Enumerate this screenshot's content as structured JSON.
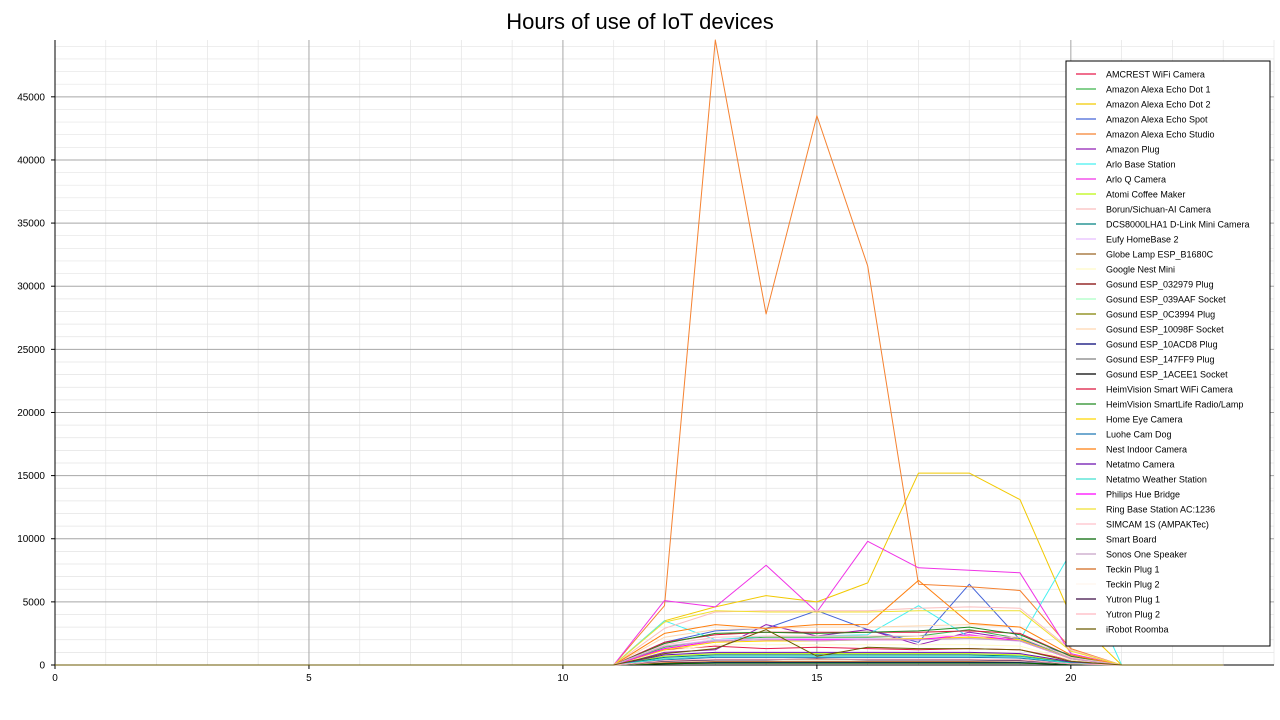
{
  "chart_data": {
    "type": "line",
    "title": "Hours of use of IoT devices",
    "xlabel": "",
    "ylabel": "",
    "xlim": [
      0,
      24
    ],
    "ylim": [
      0,
      49500
    ],
    "xticks": [
      0,
      5,
      10,
      15,
      20
    ],
    "yticks": [
      0,
      5000,
      10000,
      15000,
      20000,
      25000,
      30000,
      35000,
      40000,
      45000
    ],
    "grid": true,
    "legend_position": "top-right",
    "x": [
      0,
      1,
      2,
      3,
      4,
      5,
      6,
      7,
      8,
      9,
      10,
      11,
      12,
      13,
      14,
      15,
      16,
      17,
      18,
      19,
      20,
      21,
      22,
      23
    ],
    "series": [
      {
        "name": "AMCREST WiFi Camera",
        "color": "#e6194b",
        "values": [
          0,
          0,
          0,
          0,
          0,
          0,
          0,
          0,
          0,
          0,
          0,
          0,
          1200,
          1500,
          1300,
          1400,
          1300,
          1200,
          1300,
          1200,
          400,
          0,
          0,
          0
        ]
      },
      {
        "name": "Amazon Alexa Echo Dot 1",
        "color": "#3cb44b",
        "values": [
          0,
          0,
          0,
          0,
          0,
          0,
          0,
          0,
          0,
          0,
          0,
          0,
          1400,
          2000,
          2200,
          2200,
          2200,
          2300,
          2800,
          2100,
          600,
          0,
          0,
          0
        ]
      },
      {
        "name": "Amazon Alexa Echo Dot 2",
        "color": "#f2c900",
        "values": [
          0,
          0,
          0,
          0,
          0,
          0,
          0,
          0,
          0,
          0,
          0,
          0,
          3500,
          4600,
          5500,
          5000,
          6500,
          15200,
          15200,
          13100,
          3900,
          0,
          0,
          0
        ]
      },
      {
        "name": "Amazon Alexa Echo Spot",
        "color": "#4363d8",
        "values": [
          0,
          0,
          0,
          0,
          0,
          0,
          0,
          0,
          0,
          0,
          0,
          0,
          1800,
          2700,
          2900,
          4300,
          2800,
          1800,
          6400,
          2000,
          800,
          0,
          0,
          0
        ]
      },
      {
        "name": "Amazon Alexa Echo Studio",
        "color": "#f58231",
        "values": [
          0,
          0,
          0,
          0,
          0,
          0,
          0,
          0,
          0,
          0,
          0,
          0,
          4700,
          49500,
          27800,
          43500,
          31600,
          6400,
          6200,
          5900,
          1300,
          0,
          0,
          0
        ]
      },
      {
        "name": "Amazon Plug",
        "color": "#911eb4",
        "values": [
          0,
          0,
          0,
          0,
          0,
          0,
          0,
          0,
          0,
          0,
          0,
          0,
          1000,
          1200,
          3200,
          2300,
          2800,
          1600,
          2600,
          2000,
          500,
          0,
          0,
          0
        ]
      },
      {
        "name": "Arlo Base Station",
        "color": "#46f0f0",
        "values": [
          0,
          0,
          0,
          0,
          0,
          0,
          0,
          0,
          0,
          0,
          0,
          0,
          3500,
          2000,
          2300,
          2300,
          2400,
          4700,
          2200,
          2000,
          8900,
          0,
          0,
          0
        ]
      },
      {
        "name": "Arlo Q Camera",
        "color": "#f032e6",
        "values": [
          0,
          0,
          0,
          0,
          0,
          0,
          0,
          0,
          0,
          0,
          0,
          0,
          5100,
          4600,
          7900,
          4200,
          9800,
          7700,
          7500,
          7300,
          900,
          0,
          0,
          0
        ]
      },
      {
        "name": "Atomi Coffee Maker",
        "color": "#bcf60c",
        "values": [
          0,
          0,
          0,
          0,
          0,
          0,
          0,
          0,
          0,
          0,
          0,
          0,
          700,
          900,
          900,
          900,
          900,
          900,
          900,
          800,
          200,
          0,
          0,
          0
        ]
      },
      {
        "name": "Borun/Sichuan-AI Camera",
        "color": "#fabebe",
        "values": [
          0,
          0,
          0,
          0,
          0,
          0,
          0,
          0,
          0,
          0,
          0,
          0,
          2900,
          4200,
          4300,
          4300,
          4300,
          4500,
          4600,
          4500,
          1200,
          0,
          0,
          0
        ]
      },
      {
        "name": "DCS8000LHA1 D-Link Mini Camera",
        "color": "#008080",
        "values": [
          0,
          0,
          0,
          0,
          0,
          0,
          0,
          0,
          0,
          0,
          0,
          0,
          600,
          800,
          800,
          800,
          800,
          800,
          800,
          700,
          200,
          0,
          0,
          0
        ]
      },
      {
        "name": "Eufy HomeBase 2",
        "color": "#e6beff",
        "values": [
          0,
          0,
          0,
          0,
          0,
          0,
          0,
          0,
          0,
          0,
          0,
          0,
          1500,
          2000,
          2100,
          2100,
          2100,
          2100,
          2100,
          2000,
          500,
          0,
          0,
          0
        ]
      },
      {
        "name": "Globe Lamp ESP_B1680C",
        "color": "#9a6324",
        "values": [
          0,
          0,
          0,
          0,
          0,
          0,
          0,
          0,
          0,
          0,
          0,
          0,
          300,
          400,
          400,
          400,
          400,
          400,
          400,
          400,
          100,
          0,
          0,
          0
        ]
      },
      {
        "name": "Google Nest Mini",
        "color": "#fffac8",
        "values": [
          0,
          0,
          0,
          0,
          0,
          0,
          0,
          0,
          0,
          0,
          0,
          0,
          1100,
          1600,
          1600,
          1600,
          1600,
          1600,
          1600,
          1500,
          400,
          0,
          0,
          0
        ]
      },
      {
        "name": "Gosund ESP_032979 Plug",
        "color": "#800000",
        "values": [
          0,
          0,
          0,
          0,
          0,
          0,
          0,
          0,
          0,
          0,
          0,
          0,
          200,
          300,
          300,
          300,
          300,
          300,
          300,
          300,
          100,
          0,
          0,
          0
        ]
      },
      {
        "name": "Gosund ESP_039AAF Socket",
        "color": "#aaffc3",
        "values": [
          0,
          0,
          0,
          0,
          0,
          0,
          0,
          0,
          0,
          0,
          0,
          0,
          250,
          350,
          350,
          350,
          350,
          350,
          350,
          300,
          100,
          0,
          0,
          0
        ]
      },
      {
        "name": "Gosund ESP_0C3994 Plug",
        "color": "#808000",
        "values": [
          0,
          0,
          0,
          0,
          0,
          0,
          0,
          0,
          0,
          0,
          0,
          0,
          300,
          400,
          400,
          400,
          400,
          400,
          400,
          350,
          100,
          0,
          0,
          0
        ]
      },
      {
        "name": "Gosund ESP_10098F Socket",
        "color": "#ffd8b1",
        "values": [
          0,
          0,
          0,
          0,
          0,
          0,
          0,
          0,
          0,
          0,
          0,
          0,
          2200,
          2800,
          2900,
          3000,
          3000,
          3100,
          3200,
          3000,
          800,
          0,
          0,
          0
        ]
      },
      {
        "name": "Gosund ESP_10ACD8 Plug",
        "color": "#000075",
        "values": [
          0,
          0,
          0,
          0,
          0,
          0,
          0,
          0,
          0,
          0,
          0,
          0,
          150,
          200,
          200,
          200,
          200,
          200,
          200,
          200,
          50,
          0,
          0,
          0
        ]
      },
      {
        "name": "Gosund ESP_147FF9 Plug",
        "color": "#808080",
        "values": [
          0,
          0,
          0,
          0,
          0,
          0,
          0,
          0,
          0,
          0,
          0,
          0,
          100,
          150,
          150,
          150,
          150,
          150,
          150,
          150,
          50,
          0,
          0,
          0
        ]
      },
      {
        "name": "Gosund ESP_1ACEE1 Socket",
        "color": "#000000",
        "values": [
          0,
          0,
          0,
          0,
          0,
          0,
          0,
          0,
          0,
          0,
          0,
          0,
          200,
          300,
          300,
          300,
          300,
          300,
          300,
          300,
          100,
          0,
          0,
          0
        ]
      },
      {
        "name": "HeimVision Smart WiFi Camera",
        "color": "#dc143c",
        "values": [
          0,
          0,
          0,
          0,
          0,
          0,
          0,
          0,
          0,
          0,
          0,
          0,
          1800,
          2400,
          2600,
          2600,
          2600,
          2600,
          2700,
          2500,
          700,
          0,
          0,
          0
        ]
      },
      {
        "name": "HeimVision SmartLife Radio/Lamp",
        "color": "#228b22",
        "values": [
          0,
          0,
          0,
          0,
          0,
          0,
          0,
          0,
          0,
          0,
          0,
          0,
          1700,
          2500,
          2600,
          2500,
          2600,
          2700,
          3000,
          2400,
          700,
          0,
          0,
          0
        ]
      },
      {
        "name": "Home Eye Camera",
        "color": "#ffd700",
        "values": [
          0,
          0,
          0,
          0,
          0,
          0,
          0,
          0,
          0,
          0,
          0,
          0,
          1200,
          1800,
          1900,
          1900,
          2000,
          2100,
          2200,
          2000,
          500,
          0,
          0,
          0
        ]
      },
      {
        "name": "Luohe Cam Dog",
        "color": "#1f77b4",
        "values": [
          0,
          0,
          0,
          0,
          0,
          0,
          0,
          0,
          0,
          0,
          0,
          0,
          400,
          600,
          600,
          600,
          600,
          600,
          600,
          550,
          150,
          0,
          0,
          0
        ]
      },
      {
        "name": "Nest Indoor Camera",
        "color": "#ff7f0e",
        "values": [
          0,
          0,
          0,
          0,
          0,
          0,
          0,
          0,
          0,
          0,
          0,
          0,
          2500,
          3200,
          2900,
          3200,
          3200,
          6700,
          3300,
          3000,
          800,
          0,
          0,
          0
        ]
      },
      {
        "name": "Netatmo Camera",
        "color": "#6a0dad",
        "values": [
          0,
          0,
          0,
          0,
          0,
          0,
          0,
          0,
          0,
          0,
          0,
          0,
          800,
          1000,
          1000,
          1000,
          1000,
          1000,
          1000,
          900,
          250,
          0,
          0,
          0
        ]
      },
      {
        "name": "Netatmo Weather Station",
        "color": "#40e0d0",
        "values": [
          0,
          0,
          0,
          0,
          0,
          0,
          0,
          0,
          0,
          0,
          0,
          0,
          500,
          700,
          700,
          700,
          700,
          700,
          700,
          650,
          150,
          0,
          0,
          0
        ]
      },
      {
        "name": "Philips Hue Bridge",
        "color": "#ff00ff",
        "values": [
          0,
          0,
          0,
          0,
          0,
          0,
          0,
          0,
          0,
          0,
          0,
          0,
          1300,
          1900,
          2000,
          2000,
          2000,
          2000,
          2400,
          1900,
          500,
          0,
          0,
          0
        ]
      },
      {
        "name": "Ring Base Station AC:1236",
        "color": "#f0e130",
        "values": [
          0,
          0,
          0,
          0,
          0,
          0,
          0,
          0,
          0,
          0,
          0,
          0,
          3400,
          4300,
          4200,
          4200,
          4200,
          4300,
          4300,
          4300,
          1100,
          0,
          0,
          0
        ]
      },
      {
        "name": "SIMCAM 1S (AMPAKTec)",
        "color": "#ffc0cb",
        "values": [
          0,
          0,
          0,
          0,
          0,
          0,
          0,
          0,
          0,
          0,
          0,
          0,
          1600,
          2200,
          2300,
          2300,
          2300,
          2300,
          2300,
          2200,
          600,
          0,
          0,
          0
        ]
      },
      {
        "name": "Smart Board",
        "color": "#006400",
        "values": [
          0,
          0,
          0,
          0,
          0,
          0,
          0,
          0,
          0,
          0,
          0,
          0,
          100,
          150,
          150,
          150,
          150,
          150,
          150,
          150,
          50,
          0,
          0,
          0
        ]
      },
      {
        "name": "Sonos One Speaker",
        "color": "#c8a2c8",
        "values": [
          0,
          0,
          0,
          0,
          0,
          0,
          0,
          0,
          0,
          0,
          0,
          0,
          1500,
          1900,
          2000,
          1900,
          2000,
          2000,
          2100,
          1900,
          500,
          0,
          0,
          0
        ]
      },
      {
        "name": "Teckin Plug 1",
        "color": "#d2691e",
        "values": [
          0,
          0,
          0,
          0,
          0,
          0,
          0,
          0,
          0,
          0,
          0,
          0,
          200,
          300,
          300,
          300,
          300,
          300,
          300,
          300,
          100,
          0,
          0,
          0
        ]
      },
      {
        "name": "Teckin Plug 2",
        "color": "#fff5ee",
        "values": [
          0,
          0,
          0,
          0,
          0,
          0,
          0,
          0,
          0,
          0,
          0,
          0,
          250,
          350,
          350,
          350,
          350,
          350,
          350,
          300,
          100,
          0,
          0,
          0
        ]
      },
      {
        "name": "Yutron Plug 1",
        "color": "#3b0a45",
        "values": [
          0,
          0,
          0,
          0,
          0,
          0,
          0,
          0,
          0,
          0,
          0,
          0,
          300,
          400,
          400,
          500,
          400,
          400,
          400,
          350,
          100,
          0,
          0,
          0
        ]
      },
      {
        "name": "Yutron Plug 2",
        "color": "#ffb6c1",
        "values": [
          0,
          0,
          0,
          0,
          0,
          0,
          0,
          0,
          0,
          0,
          0,
          0,
          350,
          450,
          450,
          450,
          450,
          450,
          450,
          400,
          100,
          0,
          0,
          0
        ]
      },
      {
        "name": "iRobot Roomba",
        "color": "#6b5a00",
        "values": [
          0,
          0,
          0,
          0,
          0,
          0,
          0,
          0,
          0,
          0,
          0,
          0,
          900,
          1300,
          2800,
          700,
          1400,
          1300,
          1300,
          1200,
          300,
          0,
          0,
          0
        ]
      }
    ]
  }
}
